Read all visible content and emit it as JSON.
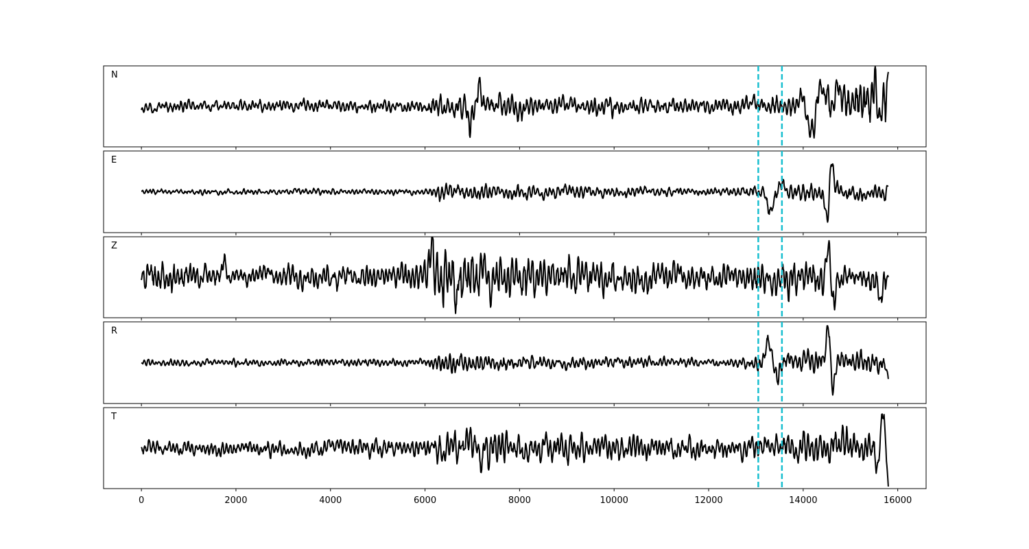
{
  "chart_data": {
    "type": "line",
    "title": "",
    "xlabel": "",
    "ylabel": "",
    "xlim": [
      -800,
      16600
    ],
    "xticks": [
      0,
      2000,
      4000,
      6000,
      8000,
      10000,
      12000,
      14000,
      16000
    ],
    "x_range": [
      0,
      15800
    ],
    "grid": false,
    "legend": "none",
    "marker_lines": [
      13050,
      13550
    ],
    "colors": {
      "trace": "#000000",
      "marker": "#17becf"
    },
    "panels": [
      {
        "label": "N",
        "envelope": [
          [
            0,
            0.12
          ],
          [
            6000,
            0.14
          ],
          [
            6300,
            0.25
          ],
          [
            7200,
            0.32
          ],
          [
            8000,
            0.26
          ],
          [
            9000,
            0.2
          ],
          [
            11000,
            0.17
          ],
          [
            12500,
            0.16
          ],
          [
            13000,
            0.2
          ],
          [
            14000,
            0.28
          ],
          [
            15000,
            0.45
          ],
          [
            15500,
            0.55
          ]
        ],
        "features": [
          {
            "x": 7150,
            "y": 0.45,
            "w": 40
          },
          {
            "x": 6950,
            "y": -0.45,
            "w": 40
          },
          {
            "x": 13950,
            "y": 0.2,
            "w": 120
          },
          {
            "x": 14350,
            "y": 0.55,
            "w": 110
          },
          {
            "x": 14200,
            "y": -0.7,
            "w": 120
          },
          {
            "x": 14750,
            "y": 0.45,
            "w": 120
          },
          {
            "x": 15520,
            "y": 0.55,
            "w": 70
          },
          {
            "x": 15600,
            "y": -0.75,
            "w": 55
          }
        ],
        "end_value": 0.85
      },
      {
        "label": "E",
        "envelope": [
          [
            0,
            0.06
          ],
          [
            6000,
            0.06
          ],
          [
            6400,
            0.2
          ],
          [
            7000,
            0.16
          ],
          [
            8000,
            0.15
          ],
          [
            9500,
            0.12
          ],
          [
            12500,
            0.08
          ],
          [
            13000,
            0.15
          ],
          [
            14000,
            0.2
          ],
          [
            15000,
            0.2
          ],
          [
            15800,
            0.18
          ]
        ],
        "features": [
          {
            "x": 13300,
            "y": -0.55,
            "w": 70
          },
          {
            "x": 13550,
            "y": 0.3,
            "w": 60
          },
          {
            "x": 14600,
            "y": 0.75,
            "w": 50
          },
          {
            "x": 14520,
            "y": -0.75,
            "w": 50
          }
        ],
        "end_value": 0.15
      },
      {
        "label": "Z",
        "envelope": [
          [
            0,
            0.32
          ],
          [
            800,
            0.28
          ],
          [
            2000,
            0.25
          ],
          [
            5000,
            0.24
          ],
          [
            6000,
            0.35
          ],
          [
            6300,
            0.62
          ],
          [
            6800,
            0.62
          ],
          [
            7500,
            0.45
          ],
          [
            9000,
            0.4
          ],
          [
            11000,
            0.3
          ],
          [
            12500,
            0.25
          ],
          [
            13000,
            0.35
          ],
          [
            14000,
            0.35
          ],
          [
            15800,
            0.3
          ]
        ],
        "features": [
          {
            "x": 1750,
            "y": 0.55,
            "w": 30
          },
          {
            "x": 6150,
            "y": 0.75,
            "w": 40
          },
          {
            "x": 6650,
            "y": -0.85,
            "w": 40
          },
          {
            "x": 14520,
            "y": 0.78,
            "w": 50
          },
          {
            "x": 14650,
            "y": -0.6,
            "w": 50
          },
          {
            "x": 15640,
            "y": -0.65,
            "w": 40
          }
        ],
        "end_value": 0.0
      },
      {
        "label": "R",
        "envelope": [
          [
            0,
            0.08
          ],
          [
            6000,
            0.08
          ],
          [
            6500,
            0.25
          ],
          [
            7500,
            0.18
          ],
          [
            9000,
            0.13
          ],
          [
            12500,
            0.08
          ],
          [
            13000,
            0.15
          ],
          [
            14000,
            0.22
          ],
          [
            15000,
            0.25
          ],
          [
            15800,
            0.22
          ]
        ],
        "features": [
          {
            "x": 13250,
            "y": 0.55,
            "w": 70
          },
          {
            "x": 13450,
            "y": -0.35,
            "w": 60
          },
          {
            "x": 14530,
            "y": 0.85,
            "w": 50
          },
          {
            "x": 14630,
            "y": -0.85,
            "w": 50
          }
        ],
        "end_value": -0.4
      },
      {
        "label": "T",
        "envelope": [
          [
            0,
            0.15
          ],
          [
            6000,
            0.2
          ],
          [
            6500,
            0.3
          ],
          [
            7300,
            0.38
          ],
          [
            8000,
            0.3
          ],
          [
            9500,
            0.28
          ],
          [
            11000,
            0.25
          ],
          [
            12500,
            0.22
          ],
          [
            13000,
            0.25
          ],
          [
            14000,
            0.3
          ],
          [
            15000,
            0.35
          ],
          [
            15800,
            0.3
          ]
        ],
        "features": [
          {
            "x": 6950,
            "y": 0.55,
            "w": 40
          },
          {
            "x": 7200,
            "y": -0.5,
            "w": 40
          },
          {
            "x": 15580,
            "y": -0.6,
            "w": 60
          },
          {
            "x": 15680,
            "y": 0.9,
            "w": 60
          }
        ],
        "end_value": -0.95
      }
    ]
  }
}
